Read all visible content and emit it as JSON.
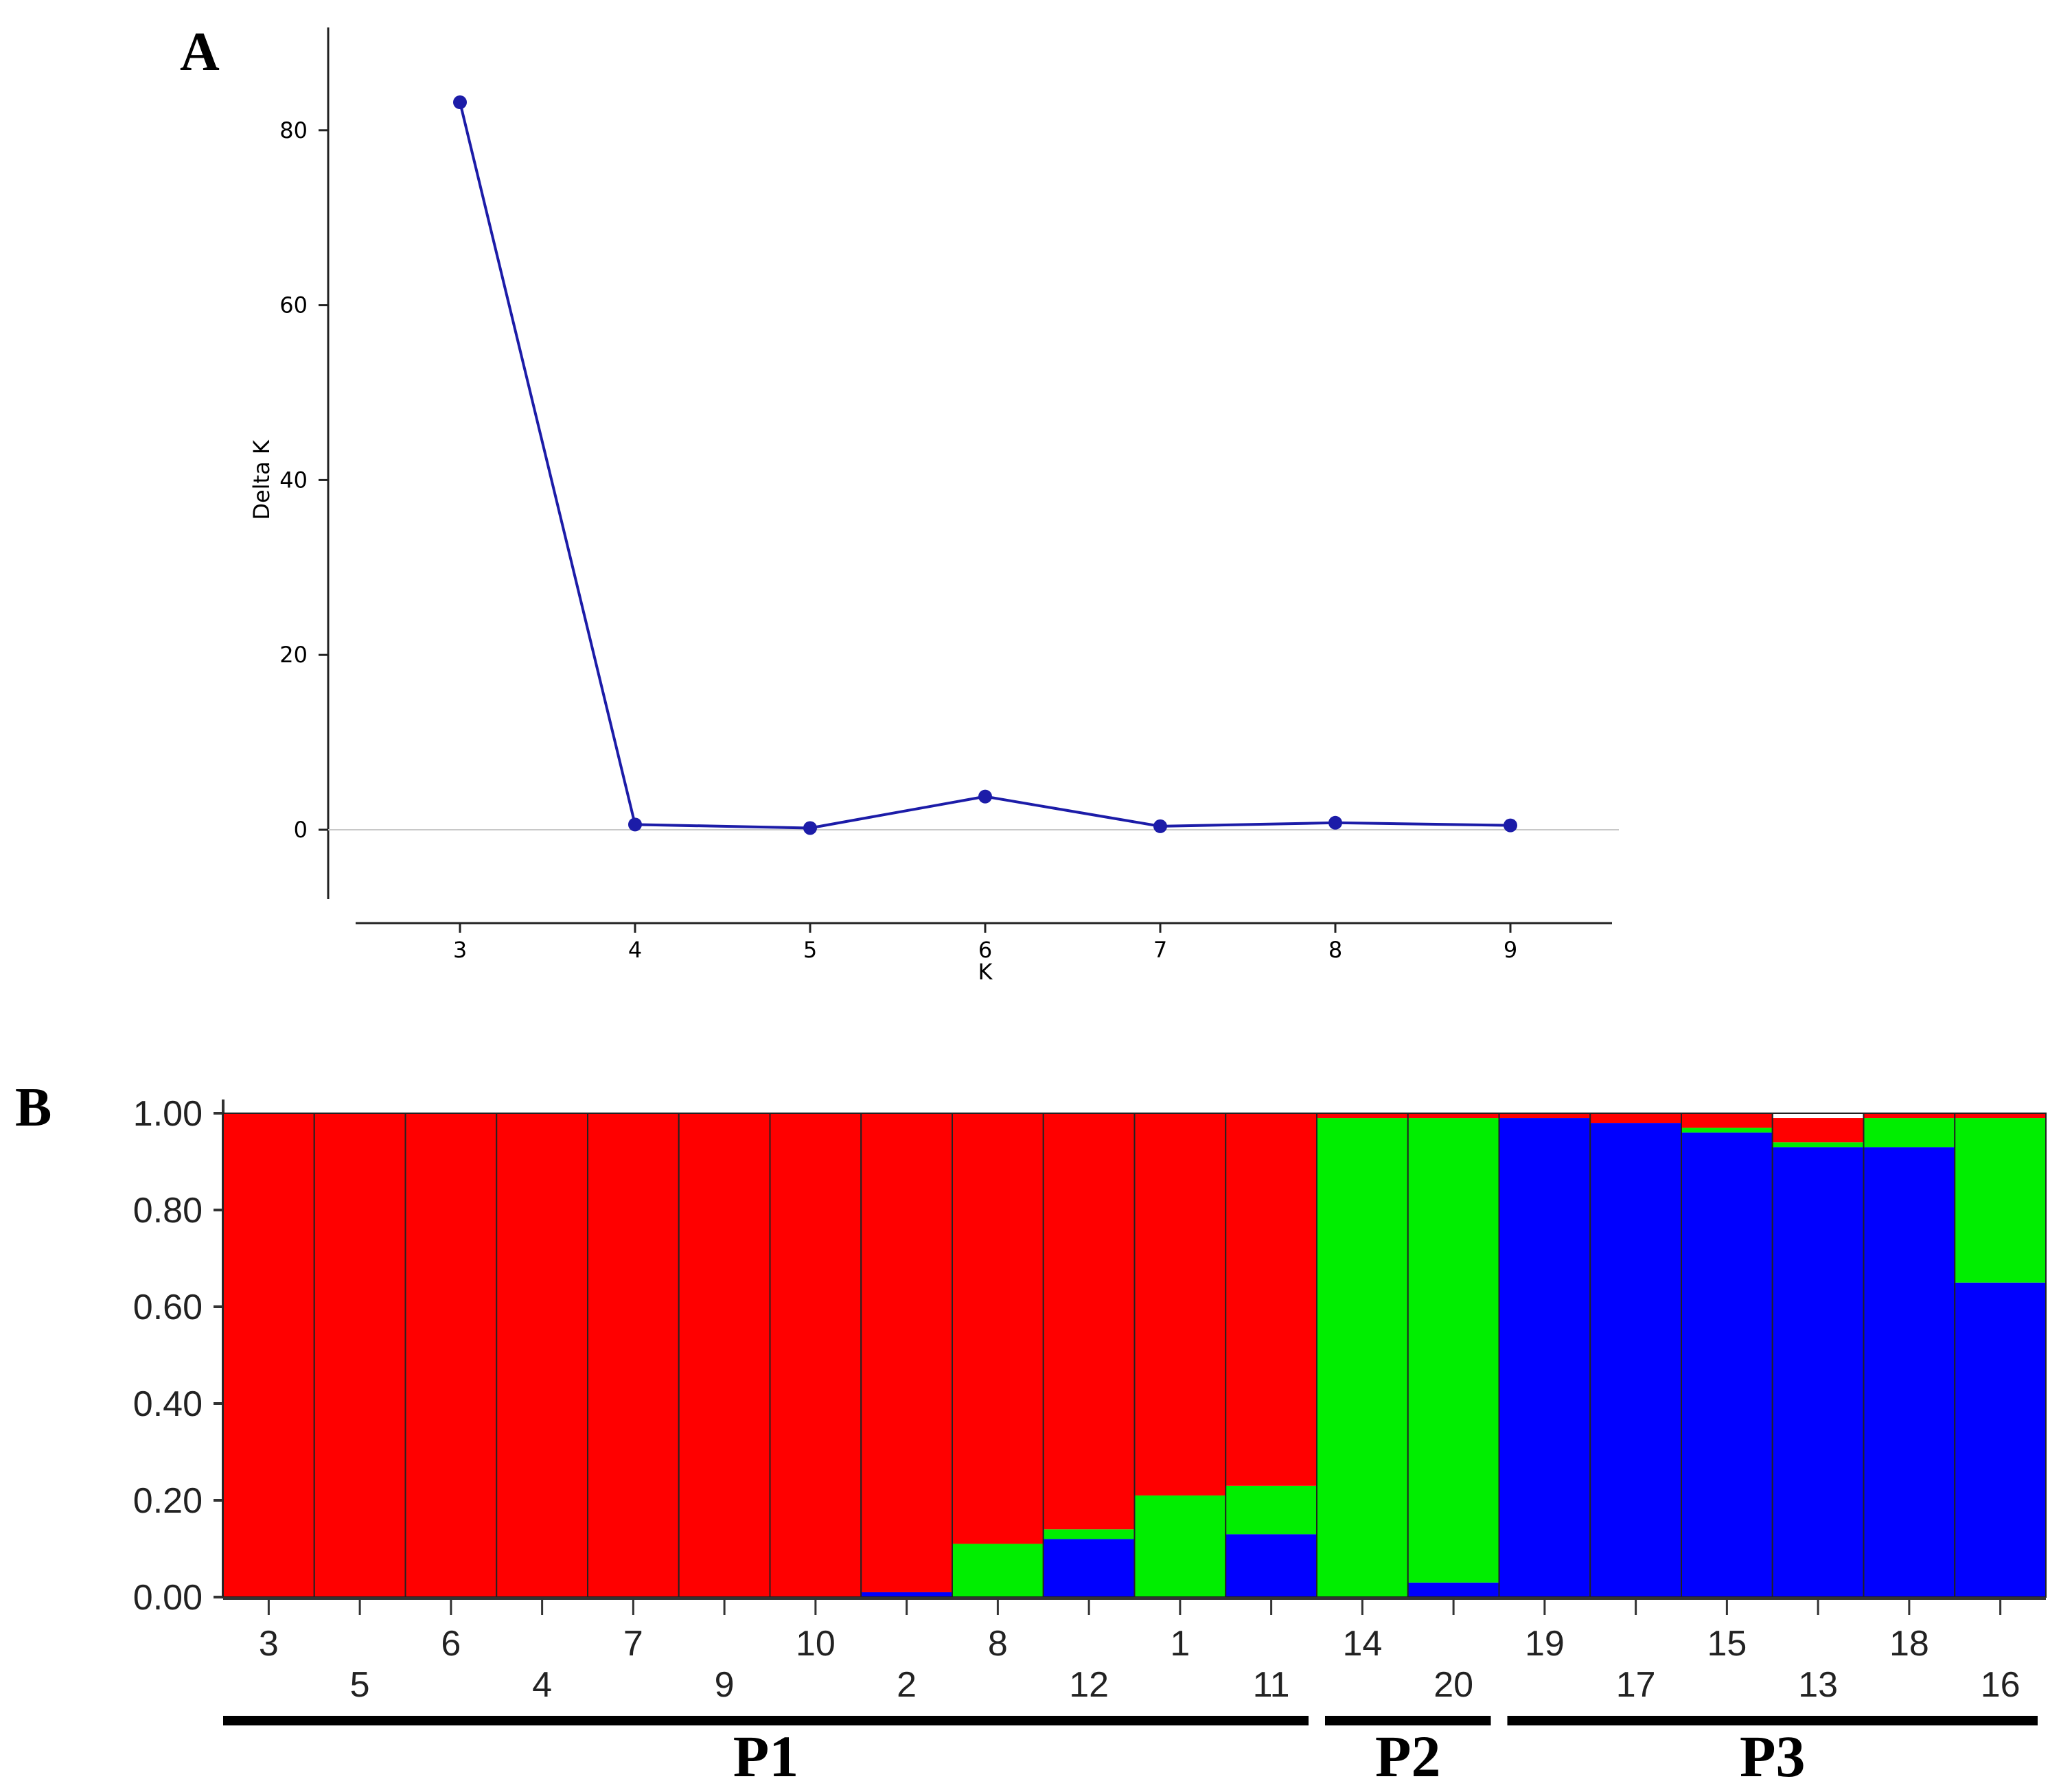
{
  "chart_data": [
    {
      "panel": "A",
      "type": "line",
      "title": "",
      "xlabel": "K",
      "ylabel": "Delta K",
      "x": [
        3,
        4,
        5,
        6,
        7,
        8,
        9
      ],
      "y": [
        83.2,
        0.6,
        0.2,
        3.8,
        0.4,
        0.8,
        0.5
      ],
      "xticks": [
        3,
        4,
        5,
        6,
        7,
        8,
        9
      ],
      "yticks": [
        0,
        20,
        40,
        60,
        80
      ],
      "xlim": [
        2.4,
        9.6
      ],
      "ylim": [
        -8,
        92
      ],
      "zero_line": true,
      "color": "#1c1ca8"
    },
    {
      "panel": "B",
      "type": "bar",
      "stacked": true,
      "ylim": [
        0,
        1
      ],
      "yticks": [
        "0.00",
        "0.20",
        "0.40",
        "0.60",
        "0.80",
        "1.00"
      ],
      "categories": [
        "3",
        "5",
        "6",
        "4",
        "7",
        "9",
        "10",
        "2",
        "8",
        "12",
        "1",
        "11",
        "14",
        "20",
        "19",
        "17",
        "15",
        "13",
        "18",
        "16"
      ],
      "series": [
        {
          "name": "blue",
          "color": "#0000ff",
          "values": [
            0,
            0,
            0,
            0,
            0,
            0,
            0,
            0.01,
            0,
            0.12,
            0,
            0.13,
            0,
            0.03,
            0.99,
            0.98,
            0.96,
            0.93,
            0.93,
            0.65
          ]
        },
        {
          "name": "green",
          "color": "#00ee00",
          "values": [
            0,
            0,
            0,
            0,
            0,
            0,
            0,
            0,
            0.11,
            0.02,
            0.21,
            0.1,
            0.99,
            0.96,
            0,
            0,
            0.01,
            0.01,
            0.06,
            0.34
          ]
        },
        {
          "name": "red",
          "color": "#ff0000",
          "values": [
            1,
            1,
            1,
            1,
            1,
            1,
            1,
            0.99,
            0.89,
            0.86,
            0.79,
            0.77,
            0.01,
            0.01,
            0.01,
            0.02,
            0.03,
            0.05,
            0.01,
            0.01
          ]
        }
      ],
      "groups": [
        {
          "label": "P1",
          "start": 0,
          "end": 11
        },
        {
          "label": "P2",
          "start": 12,
          "end": 13
        },
        {
          "label": "P3",
          "start": 14,
          "end": 19
        }
      ]
    }
  ],
  "labels": {
    "panel_a": "A",
    "panel_b": "B"
  }
}
